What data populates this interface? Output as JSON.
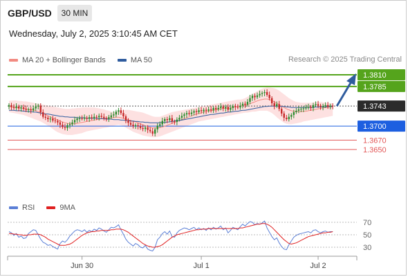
{
  "header": {
    "symbol": "GBP/USD",
    "timeframe": "30 MIN",
    "datetime": "Wednesday, July 2, 2025 3:10:45 AM CET",
    "credit": "Research © 2025 Trading Central"
  },
  "legend": [
    {
      "label": "MA 20 + Bollinger Bands",
      "color": "#f28b82"
    },
    {
      "label": "MA 50",
      "color": "#2f5c9e"
    }
  ],
  "rsi_legend": [
    {
      "label": "RSI",
      "color": "#5b7fd6"
    },
    {
      "label": "9MA",
      "color": "#e02020"
    }
  ],
  "colors": {
    "bull": "#2e8b2e",
    "bear": "#c62828",
    "target": "#55a41c",
    "pivot": "#1d5fe0",
    "support": "#e25656",
    "current": "#2b2b2b",
    "arrow": "#2f5c9e",
    "band_fill": "#fde1e1",
    "ma20": "#f28b82",
    "ma50": "#2f5c9e",
    "rsi": "#5b7fd6",
    "rsi_ma": "#e02020"
  },
  "chart_data": [
    {
      "type": "candlestick",
      "title": "GBP/USD 30 MIN",
      "x_ticks": [
        "Jun 30",
        "Jul 1",
        "Jul 2"
      ],
      "ylim": [
        1.3625,
        1.3825
      ],
      "levels": [
        {
          "value": 1.381,
          "label": "1.3810",
          "kind": "target"
        },
        {
          "value": 1.3785,
          "label": "1.3785",
          "kind": "target"
        },
        {
          "value": 1.3743,
          "label": "1.3743",
          "kind": "current"
        },
        {
          "value": 1.37,
          "label": "1.3700",
          "kind": "pivot"
        },
        {
          "value": 1.367,
          "label": "1.3670",
          "kind": "support"
        },
        {
          "value": 1.365,
          "label": "1.3650",
          "kind": "support"
        }
      ],
      "close": [
        1.3745,
        1.3741,
        1.3739,
        1.3742,
        1.3738,
        1.374,
        1.3737,
        1.3735,
        1.3736,
        1.3734,
        1.3738,
        1.3742,
        1.3744,
        1.373,
        1.372,
        1.3718,
        1.3715,
        1.3716,
        1.3712,
        1.3711,
        1.3708,
        1.3703,
        1.3698,
        1.3696,
        1.3702,
        1.3704,
        1.3708,
        1.3713,
        1.3716,
        1.3717,
        1.3716,
        1.3718,
        1.3716,
        1.3719,
        1.3717,
        1.372,
        1.3719,
        1.3722,
        1.372,
        1.3717,
        1.3716,
        1.3719,
        1.3723,
        1.3725,
        1.3731,
        1.3734,
        1.3728,
        1.3721,
        1.3712,
        1.3707,
        1.3703,
        1.37,
        1.3702,
        1.37,
        1.3696,
        1.3694,
        1.3697,
        1.3692,
        1.3689,
        1.3684,
        1.3693,
        1.3701,
        1.3704,
        1.3711,
        1.3715,
        1.3713,
        1.3717,
        1.371,
        1.3709,
        1.3714,
        1.3718,
        1.3722,
        1.3725,
        1.3728,
        1.3726,
        1.3729,
        1.3732,
        1.373,
        1.3734,
        1.3732,
        1.3735,
        1.3733,
        1.3736,
        1.3734,
        1.3739,
        1.3736,
        1.3739,
        1.3742,
        1.3738,
        1.3741,
        1.3735,
        1.3739,
        1.3743,
        1.3741,
        1.374,
        1.3744,
        1.3748,
        1.3746,
        1.3752,
        1.376,
        1.3765,
        1.3762,
        1.3766,
        1.3769,
        1.3771,
        1.3773,
        1.3767,
        1.376,
        1.3749,
        1.3743,
        1.3747,
        1.3737,
        1.3727,
        1.3718,
        1.3715,
        1.372,
        1.3724,
        1.373,
        1.3733,
        1.3736,
        1.3737,
        1.3738,
        1.374,
        1.3741,
        1.3739,
        1.3745,
        1.3747,
        1.3744,
        1.3741,
        1.3743,
        1.3745,
        1.3742,
        1.3744,
        1.3743
      ],
      "ma20": [
        1.3742,
        1.3741,
        1.374,
        1.374,
        1.3739,
        1.3739,
        1.3738,
        1.3737,
        1.3736,
        1.3735,
        1.3734,
        1.3733,
        1.3731,
        1.3729,
        1.3727,
        1.3725,
        1.3722,
        1.372,
        1.3717,
        1.3715,
        1.3713,
        1.3711,
        1.3709,
        1.3707,
        1.3706,
        1.3705,
        1.3705,
        1.3705,
        1.3706,
        1.3707,
        1.3708,
        1.3709,
        1.371,
        1.3711,
        1.3712,
        1.3713,
        1.3714,
        1.3715,
        1.3716,
        1.3716,
        1.3717,
        1.3717,
        1.3718,
        1.3718,
        1.3719,
        1.3719,
        1.3718,
        1.3717,
        1.3715,
        1.3714,
        1.3712,
        1.371,
        1.3709,
        1.3707,
        1.3705,
        1.3703,
        1.3701,
        1.3699,
        1.3697,
        1.3696,
        1.3696,
        1.3696,
        1.3697,
        1.3698,
        1.37,
        1.3702,
        1.3704,
        1.3706,
        1.3708,
        1.371,
        1.3712,
        1.3714,
        1.3716,
        1.3718,
        1.372,
        1.3722,
        1.3724,
        1.3726,
        1.3727,
        1.3728,
        1.373,
        1.3731,
        1.3732,
        1.3733,
        1.3734,
        1.3735,
        1.3736,
        1.3737,
        1.3738,
        1.3738,
        1.3739,
        1.3739,
        1.374,
        1.3741,
        1.3742,
        1.3743,
        1.3744,
        1.3745,
        1.3746,
        1.3748,
        1.375,
        1.3752,
        1.3754,
        1.3756,
        1.3757,
        1.3758,
        1.3758,
        1.3757,
        1.3755,
        1.3752,
        1.3749,
        1.3746,
        1.3743,
        1.374,
        1.3737,
        1.3735,
        1.3733,
        1.3732,
        1.3731,
        1.3731,
        1.3731,
        1.3732,
        1.3732,
        1.3733,
        1.3734,
        1.3735,
        1.3736,
        1.3737,
        1.3738,
        1.3739,
        1.374,
        1.374,
        1.3741,
        1.3741
      ],
      "ma50": [
        1.3734,
        1.3734,
        1.3734,
        1.3733,
        1.3733,
        1.3733,
        1.3732,
        1.3732,
        1.3731,
        1.3731,
        1.373,
        1.373,
        1.3729,
        1.3728,
        1.3727,
        1.3726,
        1.3726,
        1.3725,
        1.3724,
        1.3723,
        1.3722,
        1.3721,
        1.3721,
        1.372,
        1.372,
        1.3719,
        1.3719,
        1.3719,
        1.3718,
        1.3718,
        1.3718,
        1.3718,
        1.3717,
        1.3717,
        1.3717,
        1.3717,
        1.3717,
        1.3716,
        1.3716,
        1.3716,
        1.3715,
        1.3715,
        1.3715,
        1.3714,
        1.3714,
        1.3714,
        1.3713,
        1.3713,
        1.3712,
        1.3712,
        1.3711,
        1.3711,
        1.371,
        1.371,
        1.3709,
        1.3709,
        1.3708,
        1.3708,
        1.3707,
        1.3707,
        1.3707,
        1.3707,
        1.3707,
        1.3708,
        1.3708,
        1.3709,
        1.3709,
        1.371,
        1.3711,
        1.3712,
        1.3712,
        1.3713,
        1.3714,
        1.3715,
        1.3716,
        1.3717,
        1.3718,
        1.3719,
        1.372,
        1.3721,
        1.3722,
        1.3723,
        1.3724,
        1.3725,
        1.3725,
        1.3726,
        1.3727,
        1.3728,
        1.3728,
        1.3729,
        1.373,
        1.373,
        1.3731,
        1.3732,
        1.3732,
        1.3733,
        1.3734,
        1.3734,
        1.3735,
        1.3736,
        1.3737,
        1.3738,
        1.3739,
        1.374,
        1.3741,
        1.3742,
        1.3742,
        1.3743,
        1.3743,
        1.3743,
        1.3743,
        1.3743,
        1.3742,
        1.3742,
        1.3741,
        1.3741,
        1.374,
        1.374,
        1.374,
        1.374,
        1.374,
        1.374,
        1.374,
        1.374,
        1.374,
        1.374,
        1.3741,
        1.3741,
        1.3741,
        1.3741,
        1.3741,
        1.3742,
        1.3742,
        1.3742
      ],
      "bb_upper": [
        1.3754,
        1.3755,
        1.3755,
        1.3755,
        1.3754,
        1.3754,
        1.3753,
        1.3753,
        1.3752,
        1.3751,
        1.375,
        1.3749,
        1.3748,
        1.3747,
        1.3746,
        1.3745,
        1.3744,
        1.3743,
        1.3742,
        1.3741,
        1.374,
        1.3739,
        1.3738,
        1.3737,
        1.3737,
        1.3737,
        1.3738,
        1.3738,
        1.3739,
        1.3739,
        1.374,
        1.374,
        1.374,
        1.374,
        1.374,
        1.374,
        1.3739,
        1.3738,
        1.3737,
        1.3736,
        1.3734,
        1.3733,
        1.3731,
        1.373,
        1.3731,
        1.3732,
        1.3733,
        1.3734,
        1.3735,
        1.3735,
        1.3734,
        1.3733,
        1.3732,
        1.3731,
        1.373,
        1.3729,
        1.3727,
        1.3725,
        1.3723,
        1.3721,
        1.372,
        1.372,
        1.372,
        1.3722,
        1.3724,
        1.3726,
        1.3728,
        1.373,
        1.3731,
        1.3732,
        1.3733,
        1.3734,
        1.3735,
        1.3736,
        1.3737,
        1.3738,
        1.3739,
        1.374,
        1.3741,
        1.3742,
        1.3743,
        1.3744,
        1.3745,
        1.3746,
        1.3747,
        1.3748,
        1.3749,
        1.375,
        1.3751,
        1.3752,
        1.3753,
        1.3754,
        1.3755,
        1.3756,
        1.3757,
        1.3757,
        1.3758,
        1.376,
        1.3763,
        1.3766,
        1.3769,
        1.3772,
        1.3775,
        1.3778,
        1.378,
        1.3782,
        1.3783,
        1.3783,
        1.3782,
        1.3781,
        1.3779,
        1.3776,
        1.3772,
        1.3768,
        1.3764,
        1.376,
        1.3757,
        1.3754,
        1.3752,
        1.3751,
        1.375,
        1.375,
        1.375,
        1.375,
        1.375,
        1.3751,
        1.3752,
        1.3752,
        1.3752,
        1.3751,
        1.375,
        1.3749,
        1.3749,
        1.3749
      ],
      "bb_lower": [
        1.373,
        1.3729,
        1.3728,
        1.3727,
        1.3726,
        1.3725,
        1.3724,
        1.3722,
        1.372,
        1.3718,
        1.3716,
        1.3714,
        1.3712,
        1.371,
        1.3707,
        1.3704,
        1.3701,
        1.3698,
        1.3694,
        1.369,
        1.3687,
        1.3685,
        1.3683,
        1.3682,
        1.3681,
        1.3681,
        1.3681,
        1.3682,
        1.3683,
        1.3684,
        1.3685,
        1.3687,
        1.3689,
        1.369,
        1.3691,
        1.3692,
        1.3693,
        1.3694,
        1.3695,
        1.3696,
        1.3697,
        1.3698,
        1.37,
        1.3701,
        1.3702,
        1.3703,
        1.3702,
        1.37,
        1.3697,
        1.3694,
        1.3691,
        1.3688,
        1.3686,
        1.3684,
        1.3682,
        1.368,
        1.3679,
        1.3678,
        1.3677,
        1.3676,
        1.3676,
        1.3677,
        1.3678,
        1.368,
        1.3682,
        1.3684,
        1.3686,
        1.3688,
        1.369,
        1.3692,
        1.3694,
        1.3696,
        1.3698,
        1.37,
        1.3702,
        1.3704,
        1.3706,
        1.3708,
        1.371,
        1.3711,
        1.3712,
        1.3713,
        1.3714,
        1.3715,
        1.3716,
        1.3717,
        1.3718,
        1.3719,
        1.372,
        1.3721,
        1.3722,
        1.3723,
        1.3724,
        1.3725,
        1.3726,
        1.3727,
        1.3728,
        1.3729,
        1.3729,
        1.373,
        1.3731,
        1.3731,
        1.3732,
        1.3733,
        1.3733,
        1.3733,
        1.3733,
        1.3731,
        1.3728,
        1.3724,
        1.3719,
        1.3715,
        1.3711,
        1.3707,
        1.3705,
        1.3704,
        1.3704,
        1.3705,
        1.3706,
        1.3707,
        1.3708,
        1.371,
        1.3711,
        1.3712,
        1.3713,
        1.3714,
        1.3715,
        1.3716,
        1.3717,
        1.3718,
        1.3719,
        1.372,
        1.3721,
        1.3722
      ],
      "forecast_arrow": {
        "from": 1.3743,
        "to": 1.381
      }
    },
    {
      "type": "line",
      "title": "RSI",
      "ylim": [
        20,
        80
      ],
      "y_ticks": [
        70,
        50,
        30
      ],
      "x_ticks": [
        "Jun 30",
        "Jul 1",
        "Jul 2"
      ],
      "series": [
        {
          "name": "RSI",
          "values": [
            55,
            53,
            49,
            52,
            46,
            48,
            44,
            45,
            52,
            55,
            58,
            57,
            50,
            43,
            38,
            36,
            33,
            34,
            31,
            29,
            27,
            36,
            40,
            38,
            42,
            48,
            52,
            56,
            58,
            57,
            55,
            58,
            54,
            57,
            55,
            59,
            57,
            61,
            59,
            56,
            54,
            58,
            62,
            61,
            63,
            66,
            58,
            51,
            43,
            38,
            35,
            32,
            36,
            34,
            30,
            29,
            33,
            27,
            25,
            24,
            30,
            42,
            46,
            52,
            55,
            51,
            56,
            47,
            46,
            53,
            57,
            59,
            61,
            60,
            58,
            60,
            62,
            58,
            61,
            58,
            60,
            57,
            61,
            58,
            62,
            59,
            61,
            64,
            58,
            61,
            53,
            57,
            62,
            60,
            58,
            63,
            67,
            64,
            68,
            71,
            70,
            66,
            68,
            67,
            69,
            72,
            61,
            54,
            47,
            42,
            45,
            37,
            31,
            27,
            26,
            34,
            40,
            46,
            49,
            51,
            52,
            53,
            54,
            55,
            53,
            57,
            58,
            55,
            53,
            55,
            56,
            54,
            55,
            55
          ]
        },
        {
          "name": "9MA",
          "values": [
            52,
            52,
            51,
            51,
            50,
            50,
            49,
            49,
            50,
            50,
            51,
            51,
            51,
            50,
            48,
            46,
            43,
            41,
            39,
            37,
            35,
            33,
            33,
            33,
            34,
            35,
            37,
            40,
            43,
            46,
            49,
            51,
            53,
            54,
            55,
            55,
            56,
            56,
            57,
            57,
            57,
            57,
            58,
            58,
            59,
            59,
            59,
            58,
            56,
            54,
            51,
            48,
            45,
            42,
            39,
            36,
            34,
            32,
            31,
            30,
            30,
            31,
            32,
            34,
            37,
            40,
            43,
            46,
            48,
            50,
            51,
            52,
            53,
            54,
            55,
            56,
            57,
            58,
            58,
            59,
            59,
            59,
            60,
            60,
            60,
            60,
            60,
            60,
            60,
            60,
            60,
            60,
            60,
            60,
            60,
            61,
            61,
            62,
            63,
            64,
            65,
            66,
            67,
            67,
            68,
            68,
            67,
            65,
            62,
            58,
            54,
            50,
            46,
            42,
            39,
            36,
            35,
            36,
            37,
            39,
            41,
            43,
            45,
            47,
            48,
            49,
            50,
            51,
            52,
            53,
            53,
            54,
            54,
            55
          ]
        }
      ]
    }
  ]
}
